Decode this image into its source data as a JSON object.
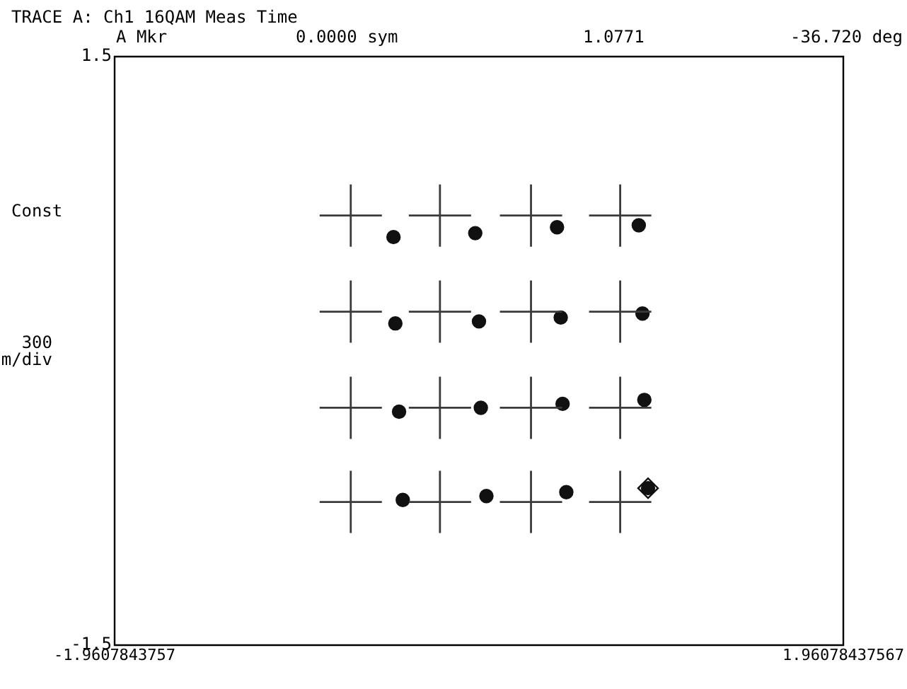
{
  "chart_data": {
    "type": "scatter",
    "title": "TRACE A: Ch1 16QAM Meas Time",
    "annotations": [
      "A Mkr",
      "0.0000 sym",
      "1.0771",
      "-36.720 deg",
      "Const",
      "300 m/div"
    ],
    "xlim": [
      -1.9607843757,
      1.96078437567
    ],
    "xticks": [
      -1.9607843757,
      1.96078437567
    ],
    "ylim": [
      -1.5,
      1.5
    ],
    "yticks": [
      -1.5,
      1.5
    ],
    "legend": false,
    "series": [
      {
        "marker": "cross",
        "color": "#3a3a3a",
        "x": [
          -0.69,
          -0.21,
          0.28,
          0.76,
          -0.69,
          -0.21,
          0.28,
          0.76,
          -0.69,
          -0.21,
          0.28,
          0.76,
          -0.69,
          -0.21,
          0.28,
          0.76
        ],
        "values": [
          0.69,
          0.69,
          0.69,
          0.69,
          0.2,
          0.2,
          0.2,
          0.2,
          -0.29,
          -0.29,
          -0.29,
          -0.29,
          -0.77,
          -0.77,
          -0.77,
          -0.77
        ]
      },
      {
        "marker": "circle",
        "color": "#111111",
        "x": [
          -0.46,
          -0.02,
          0.42,
          0.86,
          -0.45,
          0.0,
          0.44,
          0.88,
          -0.43,
          0.01,
          0.45,
          0.89,
          -0.41,
          0.04,
          0.47,
          0.91
        ],
        "values": [
          0.58,
          0.6,
          0.63,
          0.64,
          0.14,
          0.15,
          0.17,
          0.19,
          -0.31,
          -0.29,
          -0.27,
          -0.25,
          -0.76,
          -0.74,
          -0.72,
          -0.7
        ]
      },
      {
        "marker": "diamond",
        "color": "#111111",
        "x": [
          0.91
        ],
        "values": [
          -0.7
        ]
      }
    ]
  }
}
